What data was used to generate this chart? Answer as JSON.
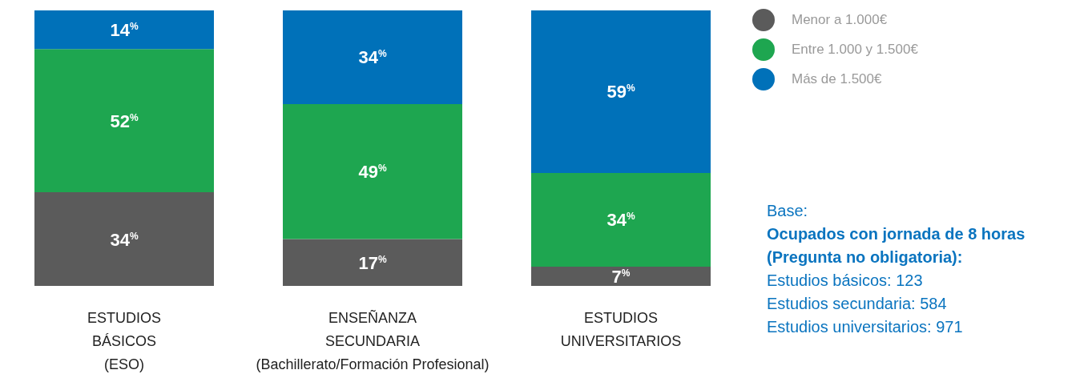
{
  "chart_data": {
    "type": "bar",
    "stacked": true,
    "tick_labels": "x",
    "categories": [
      "ESTUDIOS\nBÁSICOS\n(ESO)",
      "ENSEÑANZA\nSECUNDARIA\n(Bachillerato/Formación Profesional)",
      "ESTUDIOS\nUNIVERSITARIOS"
    ],
    "series": [
      {
        "name": "Menor a 1.000€",
        "color": "#5b5b5b",
        "values": [
          34,
          17,
          7
        ],
        "value_labels": [
          "34$^{%}$",
          "17$^{%}$",
          "7$^{%}$"
        ]
      },
      {
        "name": "Entre 1.000 y 1.500€",
        "color": "#1ea650",
        "values": [
          52,
          49,
          34
        ],
        "value_labels": [
          "52$^{%}$",
          "49$^{%}$",
          "34$^{%}$"
        ]
      },
      {
        "name": "Más de 1.500€",
        "color": "#0071b9",
        "values": [
          14,
          34,
          59
        ],
        "value_labels": [
          "14$^{%}$",
          "34$^{%}$",
          "59$^{%}$"
        ]
      }
    ],
    "legend": "top right",
    "annotations": [
      "Base:",
      "Ocupados con jornada de 8 horas",
      "(Pregunta no obligatoria):",
      "Estudios básicos: 123",
      "Estudios secundaria: 584",
      "Estudios universitarios: 971"
    ]
  }
}
